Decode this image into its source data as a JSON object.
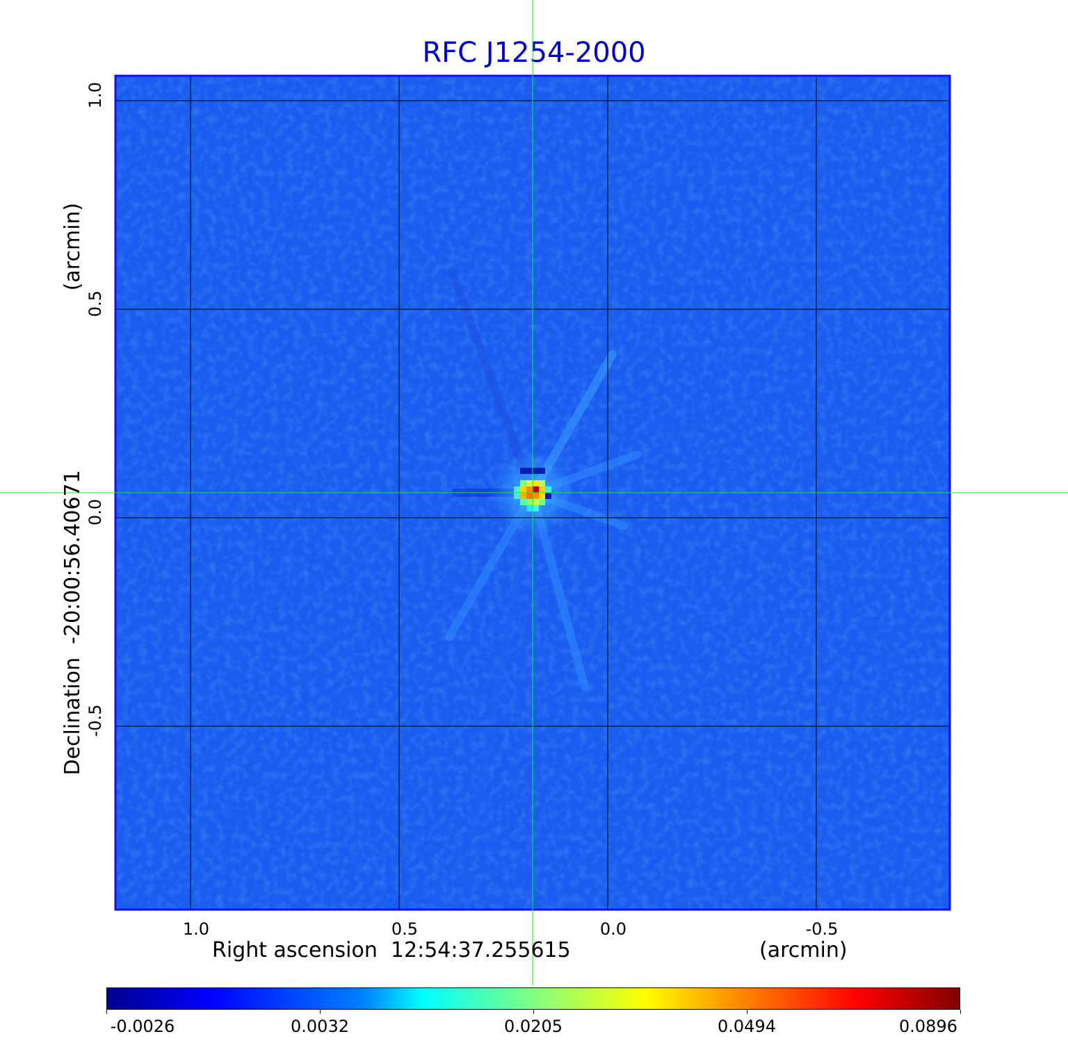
{
  "chart_data": {
    "type": "heatmap",
    "title": "RFC J1254-2000",
    "xlabel": "Right ascension  12:54:37.255615",
    "xunit": "(arcmin)",
    "ylabel": "Declination  -20:00:56.40671",
    "yunit": "(arcmin)",
    "xlim": [
      1.18,
      -0.82
    ],
    "ylim": [
      -0.94,
      1.06
    ],
    "xticks": [
      1.0,
      0.5,
      0.0,
      -0.5
    ],
    "xtick_labels": [
      "1.0",
      "0.5",
      "0.0",
      "-0.5"
    ],
    "yticks": [
      1.0,
      0.5,
      0.0,
      -0.5
    ],
    "ytick_labels": [
      "1.0",
      "0.5",
      "0.0",
      "-0.5"
    ],
    "grid": true,
    "crosshair": {
      "x": 0.18,
      "y": 0.06
    },
    "peak": {
      "x": 0.18,
      "y": 0.06,
      "value": 0.0896
    },
    "colorbar": {
      "colormap": "jet",
      "tick_values": [
        -0.0026,
        0.0032,
        0.0205,
        0.0494,
        0.0896
      ],
      "tick_labels": [
        "-0.0026",
        "0.0032",
        "0.0205",
        "0.0494",
        "0.0896"
      ]
    },
    "colors": {
      "title": "#0000dd",
      "background_map": "#1a5cf0",
      "frame": "#1010ff",
      "grid": "#000000",
      "crosshair": "#00ff00"
    }
  }
}
